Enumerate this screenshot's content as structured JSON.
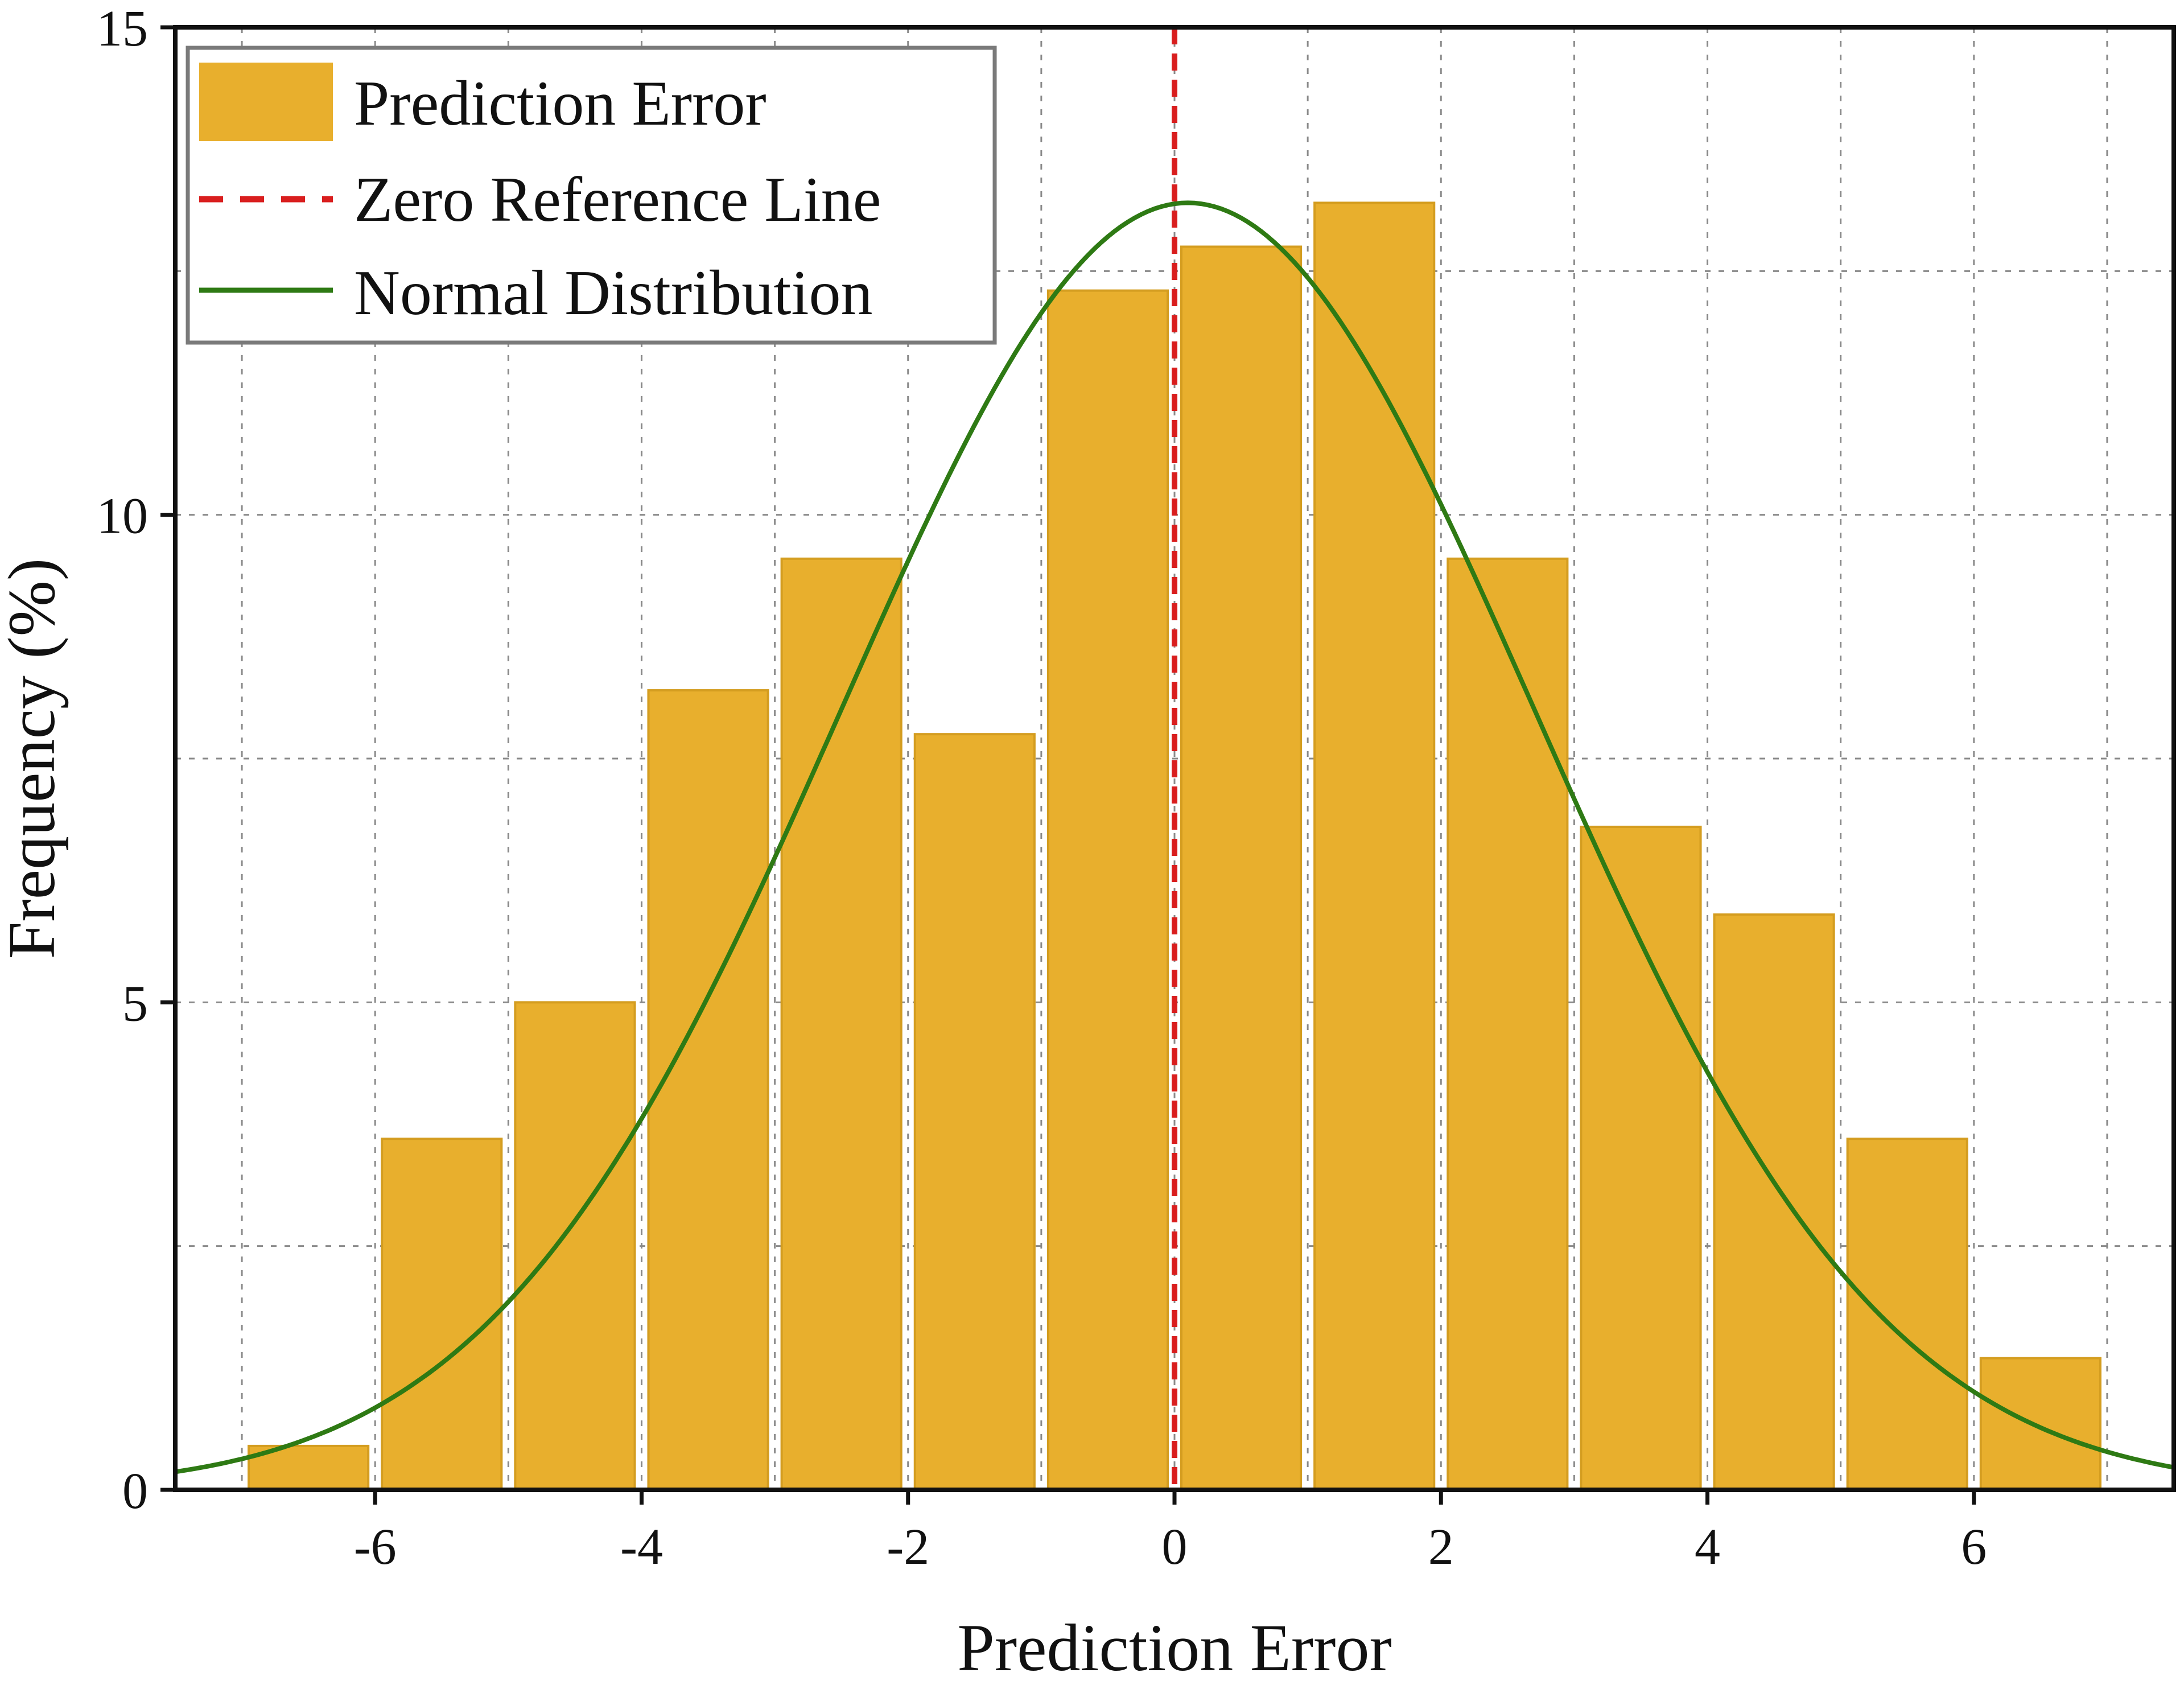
{
  "chart_data": {
    "type": "bar",
    "xlabel": "Prediction Error",
    "ylabel": "Frequency (%)",
    "xlim": [
      -7.5,
      7.5
    ],
    "ylim": [
      0,
      15
    ],
    "x_ticks": [
      "-6",
      "-4",
      "-2",
      "0",
      "2",
      "4",
      "6"
    ],
    "y_ticks": [
      "0",
      "5",
      "10",
      "15"
    ],
    "grid": true,
    "legend_position": "top-left",
    "bins": [
      {
        "from": -7,
        "to": -6
      },
      {
        "from": -6,
        "to": -5
      },
      {
        "from": -5,
        "to": -4
      },
      {
        "from": -4,
        "to": -3
      },
      {
        "from": -3,
        "to": -2
      },
      {
        "from": -2,
        "to": -1
      },
      {
        "from": -1,
        "to": 0
      },
      {
        "from": 0,
        "to": 1
      },
      {
        "from": 1,
        "to": 2
      },
      {
        "from": 2,
        "to": 3
      },
      {
        "from": 3,
        "to": 4
      },
      {
        "from": 4,
        "to": 5
      },
      {
        "from": 5,
        "to": 6
      },
      {
        "from": 6,
        "to": 7
      }
    ],
    "series": [
      {
        "name": "Prediction Error",
        "kind": "bar",
        "color": "#E8AF2D",
        "values": [
          0.45,
          3.6,
          5.0,
          8.2,
          9.55,
          7.75,
          12.3,
          12.75,
          13.2,
          9.55,
          6.8,
          5.9,
          3.6,
          1.35
        ]
      },
      {
        "name": "Zero Reference Line",
        "kind": "vline",
        "color": "#D91E1E",
        "x": 0
      },
      {
        "name": "Normal Distribution",
        "kind": "line",
        "color": "#2E7A14",
        "mean": 0.1,
        "std": 2.6,
        "peak": 13.2
      }
    ]
  }
}
